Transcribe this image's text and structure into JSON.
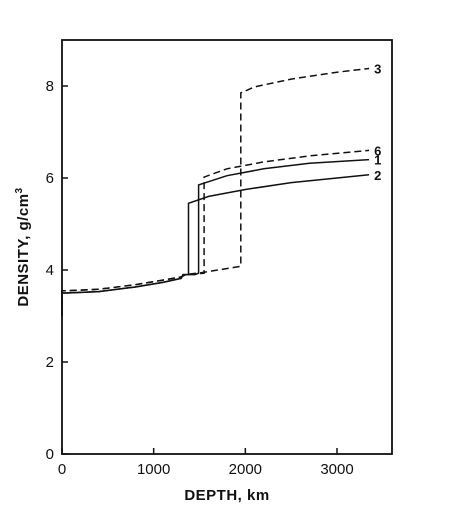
{
  "chart_data": {
    "type": "line",
    "xlabel": "DEPTH, km",
    "ylabel_main": "DENSITY, g/cm",
    "ylabel_sup": "3",
    "xlim": [
      0,
      3600
    ],
    "ylim": [
      0,
      9
    ],
    "xticks": [
      0,
      1000,
      2000,
      3000
    ],
    "yticks": [
      0,
      2,
      4,
      6,
      8
    ],
    "grid": false,
    "series": [
      {
        "name": "3",
        "style": "dashed",
        "points": [
          [
            0,
            3.0
          ],
          [
            0,
            3.55
          ],
          [
            50,
            3.55
          ],
          [
            400,
            3.58
          ],
          [
            800,
            3.68
          ],
          [
            1100,
            3.78
          ],
          [
            1300,
            3.85
          ],
          [
            1350,
            3.9
          ],
          [
            1550,
            3.95
          ],
          [
            1700,
            4.0
          ],
          [
            1950,
            4.08
          ],
          [
            1950,
            7.85
          ],
          [
            2100,
            7.98
          ],
          [
            2500,
            8.15
          ],
          [
            3000,
            8.3
          ],
          [
            3350,
            8.38
          ]
        ]
      },
      {
        "name": "6",
        "style": "dashed",
        "points": [
          [
            0,
            3.0
          ],
          [
            0,
            3.55
          ],
          [
            50,
            3.55
          ],
          [
            400,
            3.58
          ],
          [
            800,
            3.68
          ],
          [
            1100,
            3.78
          ],
          [
            1300,
            3.85
          ],
          [
            1350,
            3.9
          ],
          [
            1500,
            3.92
          ],
          [
            1550,
            3.93
          ],
          [
            1550,
            6.02
          ],
          [
            1800,
            6.2
          ],
          [
            2200,
            6.35
          ],
          [
            2700,
            6.48
          ],
          [
            3350,
            6.6
          ]
        ]
      },
      {
        "name": "1",
        "style": "solid",
        "points": [
          [
            0,
            3.0
          ],
          [
            0,
            3.5
          ],
          [
            50,
            3.5
          ],
          [
            400,
            3.53
          ],
          [
            800,
            3.63
          ],
          [
            1100,
            3.73
          ],
          [
            1300,
            3.82
          ],
          [
            1320,
            3.9
          ],
          [
            1450,
            3.9
          ],
          [
            1490,
            3.93
          ],
          [
            1490,
            5.85
          ],
          [
            1800,
            6.05
          ],
          [
            2200,
            6.2
          ],
          [
            2700,
            6.32
          ],
          [
            3350,
            6.4
          ]
        ]
      },
      {
        "name": "2",
        "style": "solid",
        "points": [
          [
            0,
            3.0
          ],
          [
            0,
            3.5
          ],
          [
            50,
            3.5
          ],
          [
            400,
            3.53
          ],
          [
            800,
            3.63
          ],
          [
            1100,
            3.73
          ],
          [
            1300,
            3.82
          ],
          [
            1320,
            3.9
          ],
          [
            1380,
            3.9
          ],
          [
            1380,
            5.45
          ],
          [
            1600,
            5.6
          ],
          [
            2000,
            5.75
          ],
          [
            2500,
            5.9
          ],
          [
            3000,
            6.0
          ],
          [
            3350,
            6.07
          ]
        ]
      }
    ]
  }
}
